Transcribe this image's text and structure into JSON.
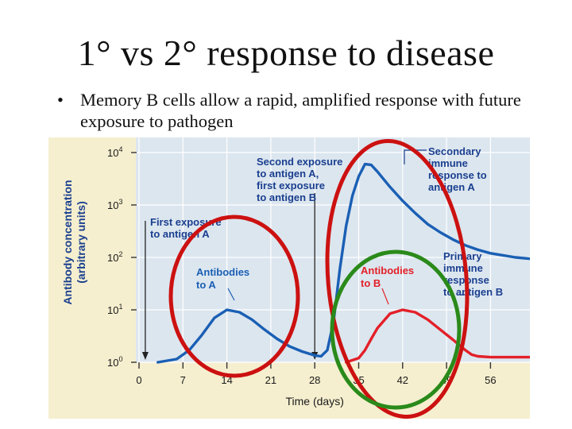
{
  "slide": {
    "title": "1° vs 2° response to disease",
    "bullet": "Memory B cells allow a rapid, amplified response with future exposure to pathogen"
  },
  "chart_data": {
    "type": "line",
    "title": "",
    "xlabel": "Time (days)",
    "ylabel": "Antibody concentration (arbitrary units)",
    "y_scale": "log",
    "xlim": [
      0,
      70
    ],
    "ylim": [
      1,
      10000
    ],
    "x_ticks": [
      "0",
      "7",
      "14",
      "21",
      "28",
      "35",
      "42",
      "49",
      "56"
    ],
    "x_tick_values": [
      0,
      7,
      14,
      21,
      28,
      35,
      42,
      49,
      56
    ],
    "y_ticks": [
      {
        "base": "10",
        "exp": "0"
      },
      {
        "base": "10",
        "exp": "1"
      },
      {
        "base": "10",
        "exp": "2"
      },
      {
        "base": "10",
        "exp": "3"
      },
      {
        "base": "10",
        "exp": "4"
      }
    ],
    "y_tick_values": [
      1,
      10,
      100,
      1000,
      10000
    ],
    "grid": true,
    "series": [
      {
        "name": "Antibodies to A",
        "color": "#1a5fb4",
        "x": [
          3,
          6,
          8,
          10,
          12,
          14,
          16,
          18,
          20,
          22,
          24,
          26,
          28,
          29,
          30,
          31,
          32,
          33,
          34,
          35,
          36,
          37,
          38,
          40,
          42,
          44,
          46,
          48,
          50,
          52,
          54,
          56,
          60,
          65,
          70
        ],
        "y": [
          1,
          1.15,
          1.7,
          3.3,
          7,
          10,
          9,
          6.5,
          4.2,
          2.8,
          2.0,
          1.6,
          1.35,
          1.3,
          1.7,
          6,
          60,
          400,
          1500,
          3500,
          6000,
          5800,
          4300,
          2200,
          1200,
          700,
          430,
          300,
          220,
          170,
          140,
          120,
          100,
          88,
          82
        ]
      },
      {
        "name": "Antibodies to B",
        "color": "#e32028",
        "x": [
          33,
          35,
          36,
          37,
          38,
          40,
          42,
          44,
          46,
          48,
          50,
          52,
          53,
          54,
          56,
          60,
          65,
          70
        ],
        "y": [
          1,
          1.2,
          1.7,
          2.8,
          4.5,
          8.5,
          10,
          9,
          6.5,
          4.2,
          2.7,
          1.7,
          1.4,
          1.3,
          1.25,
          1.25,
          1.25,
          1.25
        ]
      }
    ],
    "exposures": [
      {
        "day": 1,
        "label_lines": [
          "First exposure",
          "to antigen A"
        ]
      },
      {
        "day": 28,
        "label_lines": [
          "Second exposure",
          "to antigen A,",
          "first exposure",
          "to antigen B"
        ]
      }
    ],
    "annotations": [
      {
        "id": "secondary",
        "lines": [
          "Secondary",
          "immune",
          "response to",
          "antigen A"
        ],
        "color": "#1a3f8f"
      },
      {
        "id": "primary",
        "lines": [
          "Primary",
          "immune",
          "response",
          "to antigen B"
        ],
        "color": "#1a3f8f"
      },
      {
        "id": "antibodies-a",
        "lines": [
          "Antibodies",
          "to A"
        ],
        "color": "#1a5fb4"
      },
      {
        "id": "antibodies-b",
        "lines": [
          "Antibodies",
          "to B"
        ],
        "color": "#e32028"
      }
    ],
    "highlight_circles": [
      {
        "name": "primary-response-circle",
        "color": "#cc1111"
      },
      {
        "name": "secondary-response-circle",
        "color": "#cc1111"
      },
      {
        "name": "antigen-b-response-circle",
        "color": "#2a8a1a"
      }
    ],
    "colors": {
      "background": "#f5efcf",
      "plot_bg": "#dce6ef",
      "grid": "#ffffff",
      "axis_text": "#1a1a1a",
      "label_text": "#1a3f8f"
    }
  }
}
